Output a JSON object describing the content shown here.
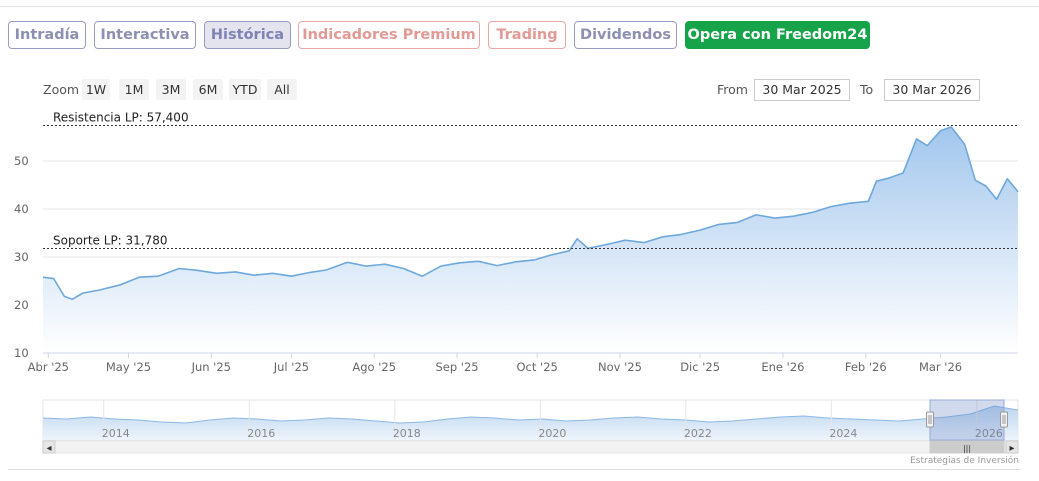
{
  "tabs": [
    {
      "label": "Intradía",
      "style": "normal"
    },
    {
      "label": "Interactiva",
      "style": "normal"
    },
    {
      "label": "Histórica",
      "style": "active"
    },
    {
      "label": "Indicadores Premium",
      "style": "premium"
    },
    {
      "label": "Trading",
      "style": "premium"
    },
    {
      "label": "Dividendos",
      "style": "normal"
    },
    {
      "label": "Opera con Freedom24",
      "style": "cta"
    }
  ],
  "zoom": {
    "label": "Zoom",
    "buttons": [
      "1W",
      "1M",
      "3M",
      "6M",
      "YTD",
      "All"
    ]
  },
  "range": {
    "from_label": "From",
    "from_value": "30 Mar 2025",
    "to_label": "To",
    "to_value": "30 Mar 2026"
  },
  "chart_data": {
    "type": "area",
    "y_ticks": [
      10,
      20,
      30,
      40,
      50
    ],
    "ylim": [
      10,
      60
    ],
    "x_tick_labels": [
      "Abr '25",
      "May '25",
      "Jun '25",
      "Jul '25",
      "Ago '25",
      "Sep '25",
      "Oct '25",
      "Nov '25",
      "Dic '25",
      "Ene '26",
      "Feb '26",
      "Mar '26"
    ],
    "x_start": "2025-03-30",
    "x_end": "2026-03-30",
    "series": [
      {
        "points": [
          [
            "2025-03-30",
            25.8
          ],
          [
            "2025-04-03",
            25.5
          ],
          [
            "2025-04-07",
            21.8
          ],
          [
            "2025-04-10",
            21.2
          ],
          [
            "2025-04-14",
            22.5
          ],
          [
            "2025-04-20",
            23.1
          ],
          [
            "2025-04-28",
            24.2
          ],
          [
            "2025-05-05",
            25.8
          ],
          [
            "2025-05-12",
            26.0
          ],
          [
            "2025-05-20",
            27.6
          ],
          [
            "2025-05-27",
            27.2
          ],
          [
            "2025-06-03",
            26.6
          ],
          [
            "2025-06-10",
            26.9
          ],
          [
            "2025-06-17",
            26.2
          ],
          [
            "2025-06-24",
            26.6
          ],
          [
            "2025-07-01",
            26.0
          ],
          [
            "2025-07-08",
            26.8
          ],
          [
            "2025-07-14",
            27.3
          ],
          [
            "2025-07-22",
            28.9
          ],
          [
            "2025-07-29",
            28.1
          ],
          [
            "2025-08-05",
            28.5
          ],
          [
            "2025-08-12",
            27.6
          ],
          [
            "2025-08-19",
            26.0
          ],
          [
            "2025-08-26",
            28.1
          ],
          [
            "2025-09-02",
            28.8
          ],
          [
            "2025-09-09",
            29.1
          ],
          [
            "2025-09-16",
            28.2
          ],
          [
            "2025-09-23",
            29.0
          ],
          [
            "2025-09-30",
            29.4
          ],
          [
            "2025-10-06",
            30.4
          ],
          [
            "2025-10-13",
            31.3
          ],
          [
            "2025-10-16",
            33.8
          ],
          [
            "2025-10-20",
            31.8
          ],
          [
            "2025-10-27",
            32.6
          ],
          [
            "2025-11-03",
            33.5
          ],
          [
            "2025-11-10",
            33.0
          ],
          [
            "2025-11-17",
            34.2
          ],
          [
            "2025-11-24",
            34.7
          ],
          [
            "2025-12-01",
            35.6
          ],
          [
            "2025-12-08",
            36.8
          ],
          [
            "2025-12-15",
            37.2
          ],
          [
            "2025-12-22",
            38.8
          ],
          [
            "2025-12-29",
            38.1
          ],
          [
            "2026-01-05",
            38.5
          ],
          [
            "2026-01-12",
            39.3
          ],
          [
            "2026-01-19",
            40.5
          ],
          [
            "2026-01-26",
            41.2
          ],
          [
            "2026-02-02",
            41.6
          ],
          [
            "2026-02-05",
            45.8
          ],
          [
            "2026-02-10",
            46.5
          ],
          [
            "2026-02-15",
            47.5
          ],
          [
            "2026-02-20",
            54.6
          ],
          [
            "2026-02-24",
            53.2
          ],
          [
            "2026-03-01",
            56.3
          ],
          [
            "2026-03-05",
            57.1
          ],
          [
            "2026-03-10",
            53.5
          ],
          [
            "2026-03-14",
            46.0
          ],
          [
            "2026-03-18",
            44.8
          ],
          [
            "2026-03-22",
            42.0
          ],
          [
            "2026-03-26",
            46.3
          ],
          [
            "2026-03-30",
            43.6
          ]
        ]
      }
    ],
    "annotations": [
      {
        "label": "Resistencia LP: 57,400",
        "value": 57.4
      },
      {
        "label": "Soporte LP: 31,780",
        "value": 31.78
      }
    ],
    "grid": true
  },
  "navigator": {
    "year_labels": [
      "2014",
      "2016",
      "2018",
      "2020",
      "2022",
      "2024",
      "2026"
    ],
    "values": [
      32,
      31,
      33,
      31,
      30,
      28,
      27,
      30,
      32,
      31,
      29,
      30,
      32,
      31,
      29,
      27,
      28,
      31,
      33,
      32,
      30,
      31,
      29,
      30,
      32,
      33,
      31,
      30,
      28,
      29,
      31,
      33,
      34,
      32,
      31,
      30,
      29,
      31,
      33,
      36,
      44,
      40
    ]
  },
  "scrollbar": {
    "left_arrow": "◂",
    "right_arrow": "▸",
    "grip": "|||"
  },
  "credits": "Estrategias de Inversión",
  "colors": {
    "line": "#6fa8dc",
    "area_top": "#9cc3ec",
    "area_bottom": "#ffffff",
    "grid": "#e6e6e6",
    "cta": "#16a34a"
  }
}
